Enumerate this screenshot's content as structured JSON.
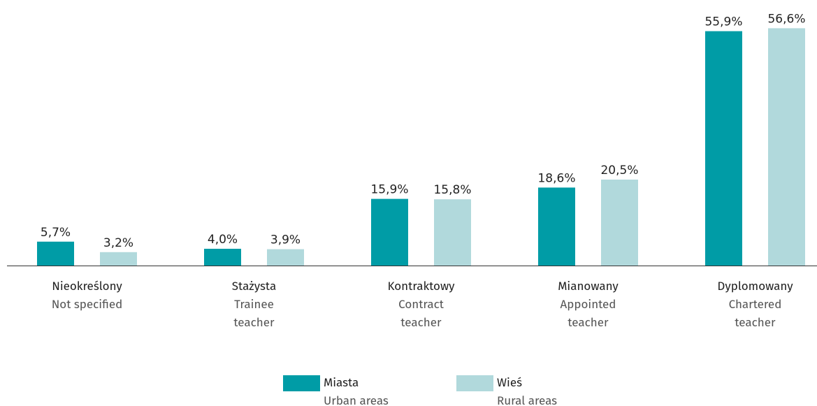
{
  "chart_data": {
    "type": "bar",
    "categories": [
      "Nieokreślony",
      "Stażysta",
      "Kontraktowy",
      "Mianowany",
      "Dyplomowany"
    ],
    "categories_en": [
      "Not specified",
      "Trainee\nteacher",
      "Contract\nteacher",
      "Appointed\nteacher",
      "Chartered\nteacher"
    ],
    "series": [
      {
        "name": "Miasta",
        "name_en": "Urban areas",
        "color": "#009ca6",
        "values": [
          5.7,
          4.0,
          15.9,
          18.6,
          55.9
        ],
        "value_labels": [
          "5,7%",
          "4,0%",
          "15,9%",
          "18,6%",
          "55,9%"
        ]
      },
      {
        "name": "Wieś",
        "name_en": "Rural areas",
        "color": "#b1d9dc",
        "values": [
          3.2,
          3.9,
          15.8,
          20.5,
          56.6
        ],
        "value_labels": [
          "3,2%",
          "3,9%",
          "15,8%",
          "20,5%",
          "56,6%"
        ]
      }
    ],
    "ylim": [
      0,
      60
    ]
  }
}
